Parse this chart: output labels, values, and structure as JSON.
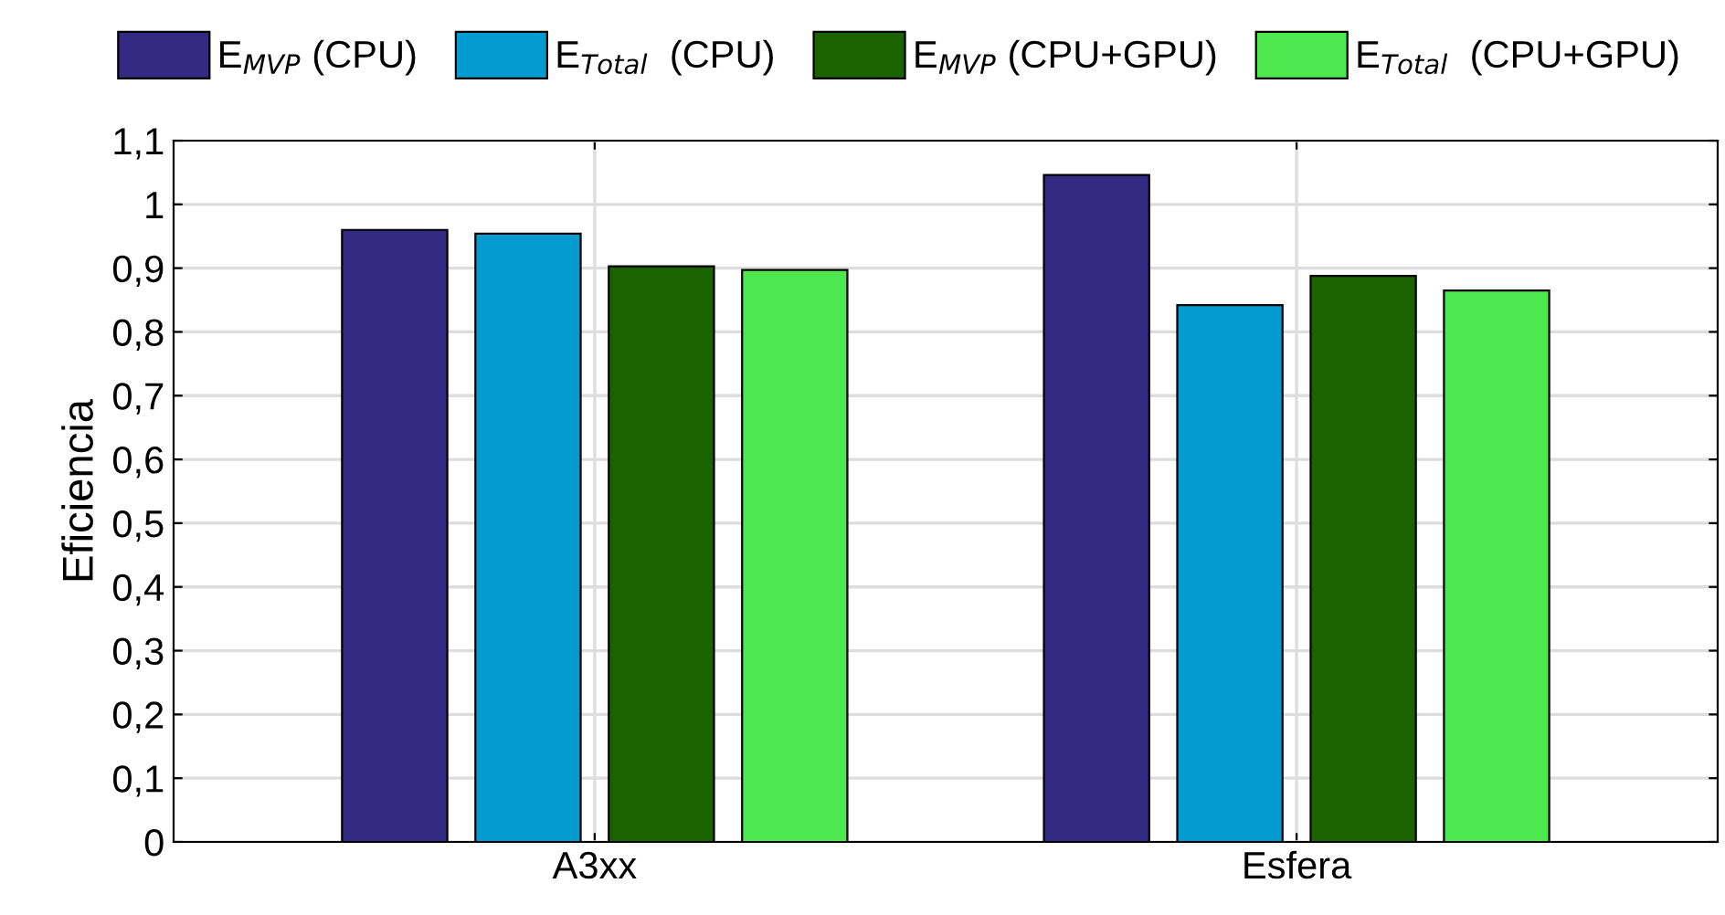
{
  "chart_data": {
    "type": "bar",
    "categories": [
      "A3xx",
      "Esfera"
    ],
    "ylabel": "Eficiencia",
    "series": [
      {
        "name": "E$_{MVP}$ (CPU)",
        "color": "#342a84",
        "values": [
          0.96,
          1.046
        ]
      },
      {
        "name": "E$_{Total}$  (CPU)",
        "color": "#069bd0",
        "values": [
          0.954,
          0.842
        ]
      },
      {
        "name": "E$_{MVP}$ (CPU+GPU)",
        "color": "#1a6300",
        "values": [
          0.903,
          0.888
        ]
      },
      {
        "name": "E$_{Total}$  (CPU+GPU)",
        "color": "#4de84d",
        "values": [
          0.897,
          0.865
        ]
      }
    ],
    "ylim": [
      0,
      1.1
    ],
    "yticks": [
      0,
      {
        "value": 0.1,
        "label": "0,1"
      },
      {
        "value": 0.2,
        "label": "0,2"
      },
      {
        "value": 0.3,
        "label": "0,3"
      },
      {
        "value": 0.4,
        "label": "0,4"
      },
      {
        "value": 0.5,
        "label": "0,5"
      },
      {
        "value": 0.6,
        "label": "0,6"
      },
      {
        "value": 0.7,
        "label": "0,7"
      },
      {
        "value": 0.8,
        "label": "0,8"
      },
      {
        "value": 0.9,
        "label": "0,9"
      },
      1,
      {
        "value": 1.1,
        "label": "1,1"
      }
    ],
    "grid": true,
    "legend": "top"
  }
}
